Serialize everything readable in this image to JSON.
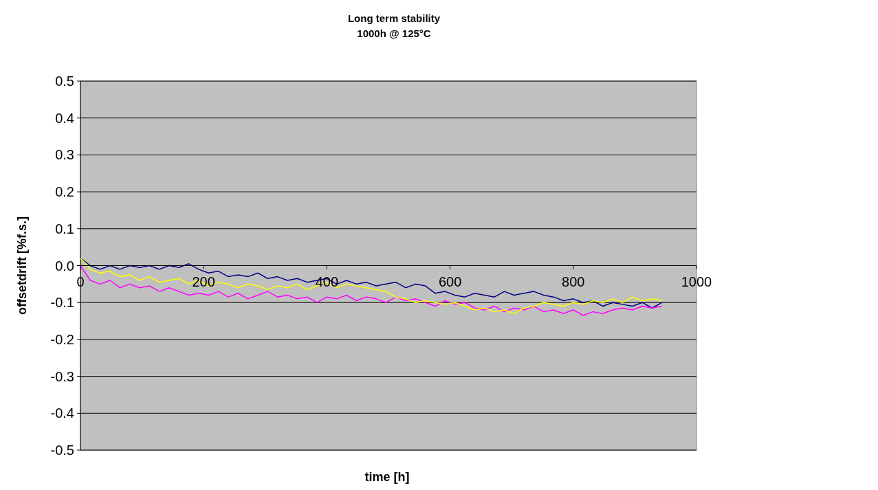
{
  "chart_data": {
    "type": "line",
    "title": "Long term stability",
    "subtitle": "1000h @ 125°C",
    "xlabel": "time [h]",
    "ylabel": "offsetdrift [%f.s.]",
    "xlim": [
      0,
      1000
    ],
    "xticks": [
      0,
      200,
      400,
      600,
      800,
      1000
    ],
    "ylim": [
      -0.5,
      0.5
    ],
    "yticks": [
      {
        "value": -0.5,
        "label": "-0.5"
      },
      {
        "value": -0.4,
        "label": "-0.4"
      },
      {
        "value": -0.3,
        "label": "-0.3"
      },
      {
        "value": -0.2,
        "label": "-0.2"
      },
      {
        "value": -0.1,
        "label": "-0.1"
      },
      {
        "value": 0,
        "label": "0.0"
      },
      {
        "value": 0.1,
        "label": "0.1"
      },
      {
        "value": 0.2,
        "label": "0.2"
      },
      {
        "value": 0.3,
        "label": "0.3"
      },
      {
        "value": 0.4,
        "label": "0.4"
      },
      {
        "value": 0.5,
        "label": "0.5"
      }
    ],
    "grid": "y",
    "marker": "none",
    "line_style": "solid",
    "x": [
      0,
      16,
      32,
      48,
      64,
      80,
      96,
      112,
      128,
      144,
      160,
      176,
      192,
      208,
      224,
      240,
      256,
      272,
      288,
      304,
      320,
      336,
      352,
      368,
      384,
      400,
      416,
      432,
      448,
      464,
      480,
      496,
      512,
      528,
      544,
      560,
      576,
      592,
      608,
      624,
      640,
      656,
      672,
      688,
      704,
      720,
      736,
      752,
      768,
      784,
      800,
      816,
      832,
      848,
      864,
      880,
      896,
      912,
      928,
      944
    ],
    "series": [
      {
        "color": "#000080",
        "values": [
          0.02,
          0.0,
          -0.01,
          0.0,
          -0.01,
          0.0,
          -0.005,
          0.0,
          -0.01,
          0.0,
          -0.005,
          0.005,
          -0.01,
          -0.02,
          -0.015,
          -0.03,
          -0.025,
          -0.03,
          -0.02,
          -0.035,
          -0.03,
          -0.04,
          -0.035,
          -0.045,
          -0.04,
          -0.035,
          -0.05,
          -0.04,
          -0.05,
          -0.045,
          -0.055,
          -0.05,
          -0.045,
          -0.06,
          -0.05,
          -0.055,
          -0.075,
          -0.07,
          -0.08,
          -0.085,
          -0.075,
          -0.08,
          -0.085,
          -0.07,
          -0.08,
          -0.075,
          -0.07,
          -0.08,
          -0.085,
          -0.095,
          -0.09,
          -0.1,
          -0.095,
          -0.11,
          -0.1,
          -0.105,
          -0.11,
          -0.1,
          -0.115,
          -0.1
        ]
      },
      {
        "color": "#ff00ff",
        "values": [
          0.0,
          -0.04,
          -0.05,
          -0.04,
          -0.06,
          -0.05,
          -0.06,
          -0.055,
          -0.07,
          -0.06,
          -0.07,
          -0.08,
          -0.075,
          -0.08,
          -0.07,
          -0.085,
          -0.075,
          -0.09,
          -0.08,
          -0.07,
          -0.085,
          -0.08,
          -0.09,
          -0.085,
          -0.1,
          -0.085,
          -0.09,
          -0.08,
          -0.095,
          -0.085,
          -0.09,
          -0.1,
          -0.085,
          -0.095,
          -0.09,
          -0.1,
          -0.11,
          -0.095,
          -0.105,
          -0.1,
          -0.115,
          -0.12,
          -0.11,
          -0.125,
          -0.115,
          -0.12,
          -0.11,
          -0.125,
          -0.12,
          -0.13,
          -0.12,
          -0.135,
          -0.125,
          -0.13,
          -0.12,
          -0.115,
          -0.12,
          -0.11,
          -0.115,
          -0.11
        ]
      },
      {
        "color": "#ffff00",
        "values": [
          0.02,
          -0.01,
          -0.02,
          -0.015,
          -0.03,
          -0.025,
          -0.04,
          -0.03,
          -0.045,
          -0.04,
          -0.035,
          -0.05,
          -0.04,
          -0.055,
          -0.045,
          -0.05,
          -0.06,
          -0.05,
          -0.055,
          -0.065,
          -0.055,
          -0.06,
          -0.05,
          -0.065,
          -0.055,
          -0.045,
          -0.06,
          -0.05,
          -0.055,
          -0.06,
          -0.065,
          -0.07,
          -0.085,
          -0.09,
          -0.1,
          -0.095,
          -0.1,
          -0.105,
          -0.1,
          -0.11,
          -0.12,
          -0.115,
          -0.125,
          -0.12,
          -0.13,
          -0.115,
          -0.11,
          -0.1,
          -0.105,
          -0.11,
          -0.1,
          -0.105,
          -0.095,
          -0.1,
          -0.09,
          -0.1,
          -0.085,
          -0.095,
          -0.09,
          -0.095
        ]
      }
    ]
  }
}
